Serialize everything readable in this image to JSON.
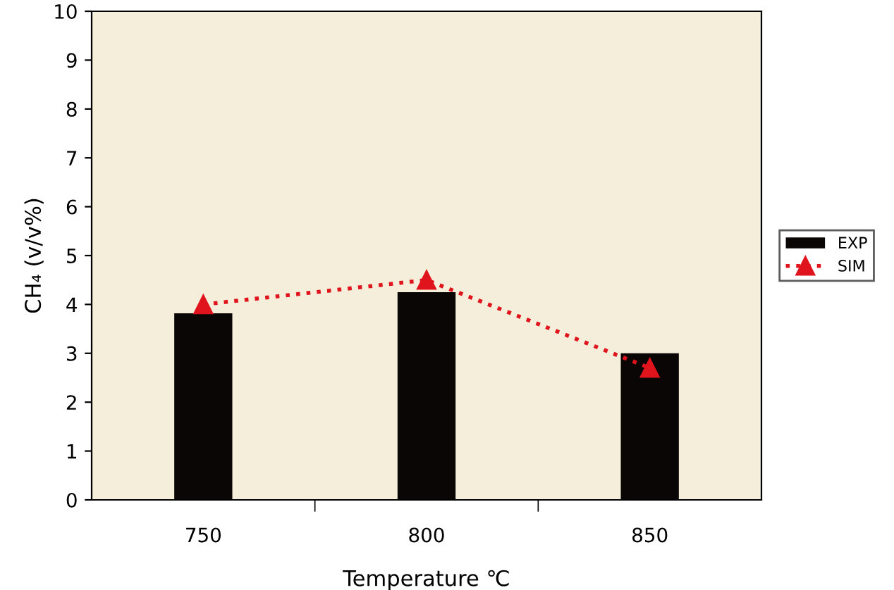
{
  "chart_data": {
    "type": "bar",
    "xlabel": "Temperature ℃",
    "ylabel": "CH₄ (v/v%)",
    "categories": [
      "750",
      "800",
      "850"
    ],
    "series": [
      {
        "name": "EXP",
        "color": "#0a0605",
        "values": [
          3.82,
          4.25,
          3.0
        ]
      },
      {
        "name": "SIM",
        "type": "line",
        "color": "#e0141c",
        "values": [
          4.0,
          4.5,
          2.7
        ],
        "marker": "triangle",
        "line_style": "dotted"
      }
    ],
    "ylim": [
      0,
      10
    ],
    "yticks": [
      0,
      1,
      2,
      3,
      4,
      5,
      6,
      7,
      8,
      9,
      10
    ],
    "grid": false,
    "legend": "right"
  }
}
